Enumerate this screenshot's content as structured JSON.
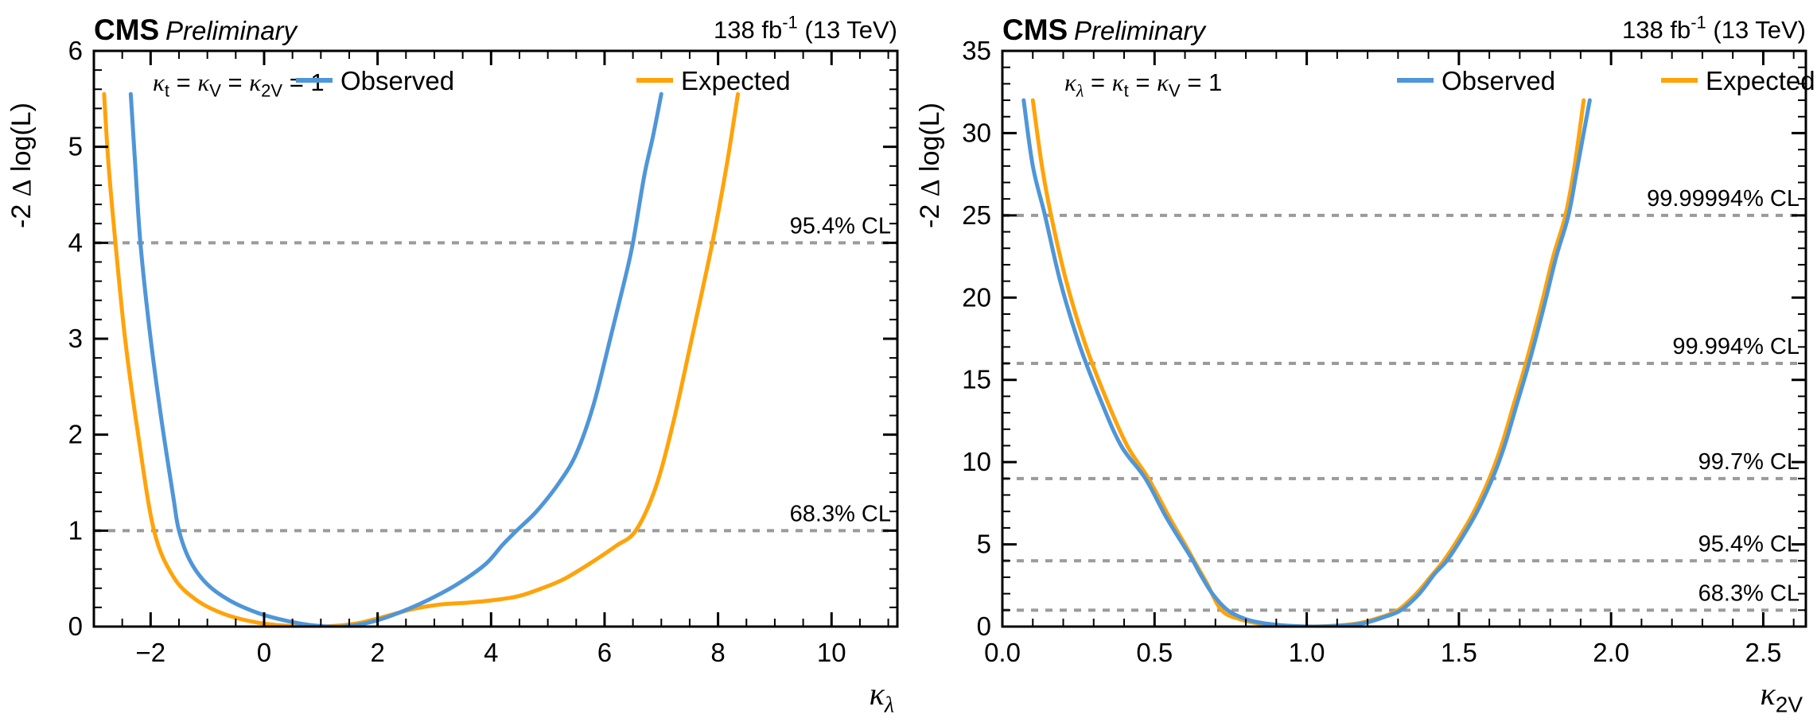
{
  "colors": {
    "observed": "#4f96d8",
    "expected": "#ffa30a",
    "cl_line": "#9b9b9b",
    "cl_label": "#a8a8a8",
    "axis": "#000000",
    "background": "#ffffff"
  },
  "panels": [
    {
      "name": "kappa-lambda-scan",
      "header": {
        "experiment": "CMS",
        "status": "Preliminary",
        "lumi": "138 fb^{-1} (13 TeV)"
      },
      "parameter_label": "κ_{t} = κ_{V} = κ_{2V} = 1",
      "legend": [
        {
          "series": "observed",
          "label": "Observed"
        },
        {
          "series": "expected",
          "label": "Expected"
        }
      ],
      "x_tick_labels": [
        "−2",
        "0",
        "2",
        "4",
        "6",
        "8",
        "10"
      ],
      "y_tick_labels": [
        "0",
        "1",
        "2",
        "3",
        "4",
        "5",
        "6"
      ],
      "cl_labels": [
        "68.3% CL",
        "95.4% CL"
      ]
    },
    {
      "name": "kappa-2V-scan",
      "header": {
        "experiment": "CMS",
        "status": "Preliminary",
        "lumi": "138 fb^{-1} (13 TeV)"
      },
      "parameter_label": "κ_{λ} = κ_{t} = κ_{V} = 1",
      "legend": [
        {
          "series": "observed",
          "label": "Observed"
        },
        {
          "series": "expected",
          "label": "Expected"
        }
      ],
      "x_tick_labels": [
        "0.0",
        "0.5",
        "1.0",
        "1.5",
        "2.0",
        "2.5"
      ],
      "y_tick_labels": [
        "0",
        "5",
        "10",
        "15",
        "20",
        "25",
        "30",
        "35"
      ],
      "cl_labels": [
        "68.3% CL",
        "95.4% CL",
        "99.7% CL",
        "99.994% CL",
        "99.99994% CL"
      ]
    }
  ],
  "chart_data": [
    {
      "type": "line",
      "title": "CMS Preliminary",
      "annotation": "κ_t = κ_V = κ_2V = 1",
      "xlabel": "κ_{λ}",
      "ylabel": "-2 Δ log(L)",
      "xlim": [
        -3,
        11.16
      ],
      "ylim": [
        0,
        6
      ],
      "x_major_ticks": [
        -2,
        0,
        2,
        4,
        6,
        8,
        10
      ],
      "x_minor_step": 0.5,
      "y_major_ticks": [
        0,
        1,
        2,
        3,
        4,
        5,
        6
      ],
      "y_minor_step": 0.2,
      "grid": false,
      "legend_position": "top-inside",
      "reference_lines": [
        {
          "y": 1,
          "label": "68.3% CL"
        },
        {
          "y": 4,
          "label": "95.4% CL"
        }
      ],
      "series": [
        {
          "name": "Observed",
          "color": "#4f96d8",
          "points": [
            [
              -2.35,
              5.55
            ],
            [
              -2.27,
              4.8
            ],
            [
              -2.18,
              4.0
            ],
            [
              -2.02,
              3.1
            ],
            [
              -1.82,
              2.2
            ],
            [
              -1.6,
              1.35
            ],
            [
              -1.5,
              1.0
            ],
            [
              -1.3,
              0.68
            ],
            [
              -1.0,
              0.44
            ],
            [
              -0.6,
              0.27
            ],
            [
              -0.1,
              0.14
            ],
            [
              0.4,
              0.06
            ],
            [
              0.9,
              0.01
            ],
            [
              1.4,
              0.0
            ],
            [
              1.9,
              0.05
            ],
            [
              2.4,
              0.15
            ],
            [
              2.9,
              0.28
            ],
            [
              3.4,
              0.44
            ],
            [
              3.9,
              0.65
            ],
            [
              4.2,
              0.85
            ],
            [
              4.45,
              1.0
            ],
            [
              4.8,
              1.2
            ],
            [
              5.2,
              1.5
            ],
            [
              5.5,
              1.8
            ],
            [
              5.8,
              2.3
            ],
            [
              6.1,
              3.0
            ],
            [
              6.35,
              3.6
            ],
            [
              6.5,
              4.0
            ],
            [
              6.7,
              4.7
            ],
            [
              6.85,
              5.1
            ],
            [
              7.0,
              5.55
            ]
          ]
        },
        {
          "name": "Expected",
          "color": "#ffa30a",
          "points": [
            [
              -2.82,
              5.55
            ],
            [
              -2.74,
              4.8
            ],
            [
              -2.62,
              4.0
            ],
            [
              -2.45,
              3.0
            ],
            [
              -2.22,
              2.0
            ],
            [
              -1.94,
              1.0
            ],
            [
              -1.6,
              0.52
            ],
            [
              -1.2,
              0.28
            ],
            [
              -0.7,
              0.13
            ],
            [
              -0.1,
              0.04
            ],
            [
              0.5,
              0.005
            ],
            [
              1.05,
              0.0
            ],
            [
              1.6,
              0.03
            ],
            [
              2.1,
              0.1
            ],
            [
              2.6,
              0.18
            ],
            [
              3.1,
              0.23
            ],
            [
              3.6,
              0.25
            ],
            [
              4.1,
              0.28
            ],
            [
              4.5,
              0.32
            ],
            [
              4.9,
              0.4
            ],
            [
              5.3,
              0.5
            ],
            [
              5.8,
              0.68
            ],
            [
              6.2,
              0.84
            ],
            [
              6.55,
              1.0
            ],
            [
              6.9,
              1.45
            ],
            [
              7.2,
              2.1
            ],
            [
              7.5,
              2.9
            ],
            [
              7.9,
              4.0
            ],
            [
              8.15,
              4.8
            ],
            [
              8.35,
              5.55
            ]
          ]
        }
      ]
    },
    {
      "type": "line",
      "title": "CMS Preliminary",
      "annotation": "κ_λ = κ_t = κ_V = 1",
      "xlabel": "κ_{2V}",
      "ylabel": "-2 Δ log(L)",
      "xlim": [
        0,
        2.64
      ],
      "ylim": [
        0,
        35
      ],
      "x_major_ticks": [
        0,
        0.5,
        1.0,
        1.5,
        2.0,
        2.5
      ],
      "x_minor_step": 0.1,
      "y_major_ticks": [
        0,
        5,
        10,
        15,
        20,
        25,
        30,
        35
      ],
      "y_minor_step": 1,
      "grid": false,
      "legend_position": "top-inside",
      "reference_lines": [
        {
          "y": 1,
          "label": "68.3% CL"
        },
        {
          "y": 4,
          "label": "95.4% CL"
        },
        {
          "y": 9,
          "label": "99.7% CL"
        },
        {
          "y": 16,
          "label": "99.994% CL"
        },
        {
          "y": 25,
          "label": "99.99994% CL"
        }
      ],
      "series": [
        {
          "name": "Observed",
          "color": "#4f96d8",
          "points": [
            [
              0.07,
              32
            ],
            [
              0.1,
              28
            ],
            [
              0.14,
              25
            ],
            [
              0.19,
              21
            ],
            [
              0.25,
              17.3
            ],
            [
              0.32,
              13.9
            ],
            [
              0.39,
              11.0
            ],
            [
              0.47,
              9.0
            ],
            [
              0.54,
              6.6
            ],
            [
              0.62,
              4.2
            ],
            [
              0.65,
              3.2
            ],
            [
              0.69,
              2.0
            ],
            [
              0.74,
              1.0
            ],
            [
              0.8,
              0.45
            ],
            [
              0.86,
              0.2
            ],
            [
              0.94,
              0.05
            ],
            [
              1.03,
              0.0
            ],
            [
              1.12,
              0.06
            ],
            [
              1.19,
              0.22
            ],
            [
              1.25,
              0.55
            ],
            [
              1.31,
              1.0
            ],
            [
              1.37,
              2.0
            ],
            [
              1.42,
              3.2
            ],
            [
              1.46,
              4.0
            ],
            [
              1.51,
              5.4
            ],
            [
              1.56,
              7.0
            ],
            [
              1.61,
              9.0
            ],
            [
              1.65,
              11.0
            ],
            [
              1.69,
              13.5
            ],
            [
              1.73,
              16.0
            ],
            [
              1.78,
              19.5
            ],
            [
              1.82,
              22.5
            ],
            [
              1.86,
              25.0
            ],
            [
              1.89,
              28.0
            ],
            [
              1.93,
              32.0
            ]
          ]
        },
        {
          "name": "Expected",
          "color": "#ffa30a",
          "points": [
            [
              0.1,
              32
            ],
            [
              0.13,
              28
            ],
            [
              0.16,
              25
            ],
            [
              0.21,
              21
            ],
            [
              0.27,
              17.3
            ],
            [
              0.34,
              13.9
            ],
            [
              0.41,
              11.0
            ],
            [
              0.48,
              9.0
            ],
            [
              0.55,
              6.6
            ],
            [
              0.6,
              5.0
            ],
            [
              0.63,
              4.0
            ],
            [
              0.67,
              2.7
            ],
            [
              0.72,
              1.0
            ],
            [
              0.78,
              0.45
            ],
            [
              0.84,
              0.2
            ],
            [
              0.92,
              0.05
            ],
            [
              1.01,
              0.0
            ],
            [
              1.1,
              0.06
            ],
            [
              1.17,
              0.2
            ],
            [
              1.24,
              0.55
            ],
            [
              1.3,
              1.0
            ],
            [
              1.36,
              2.0
            ],
            [
              1.41,
              3.1
            ],
            [
              1.45,
              4.0
            ],
            [
              1.5,
              5.4
            ],
            [
              1.55,
              7.0
            ],
            [
              1.6,
              9.0
            ],
            [
              1.64,
              11.0
            ],
            [
              1.68,
              13.5
            ],
            [
              1.72,
              16.0
            ],
            [
              1.77,
              19.5
            ],
            [
              1.81,
              22.5
            ],
            [
              1.85,
              25.0
            ],
            [
              1.88,
              28.0
            ],
            [
              1.91,
              32.0
            ]
          ]
        }
      ]
    }
  ]
}
